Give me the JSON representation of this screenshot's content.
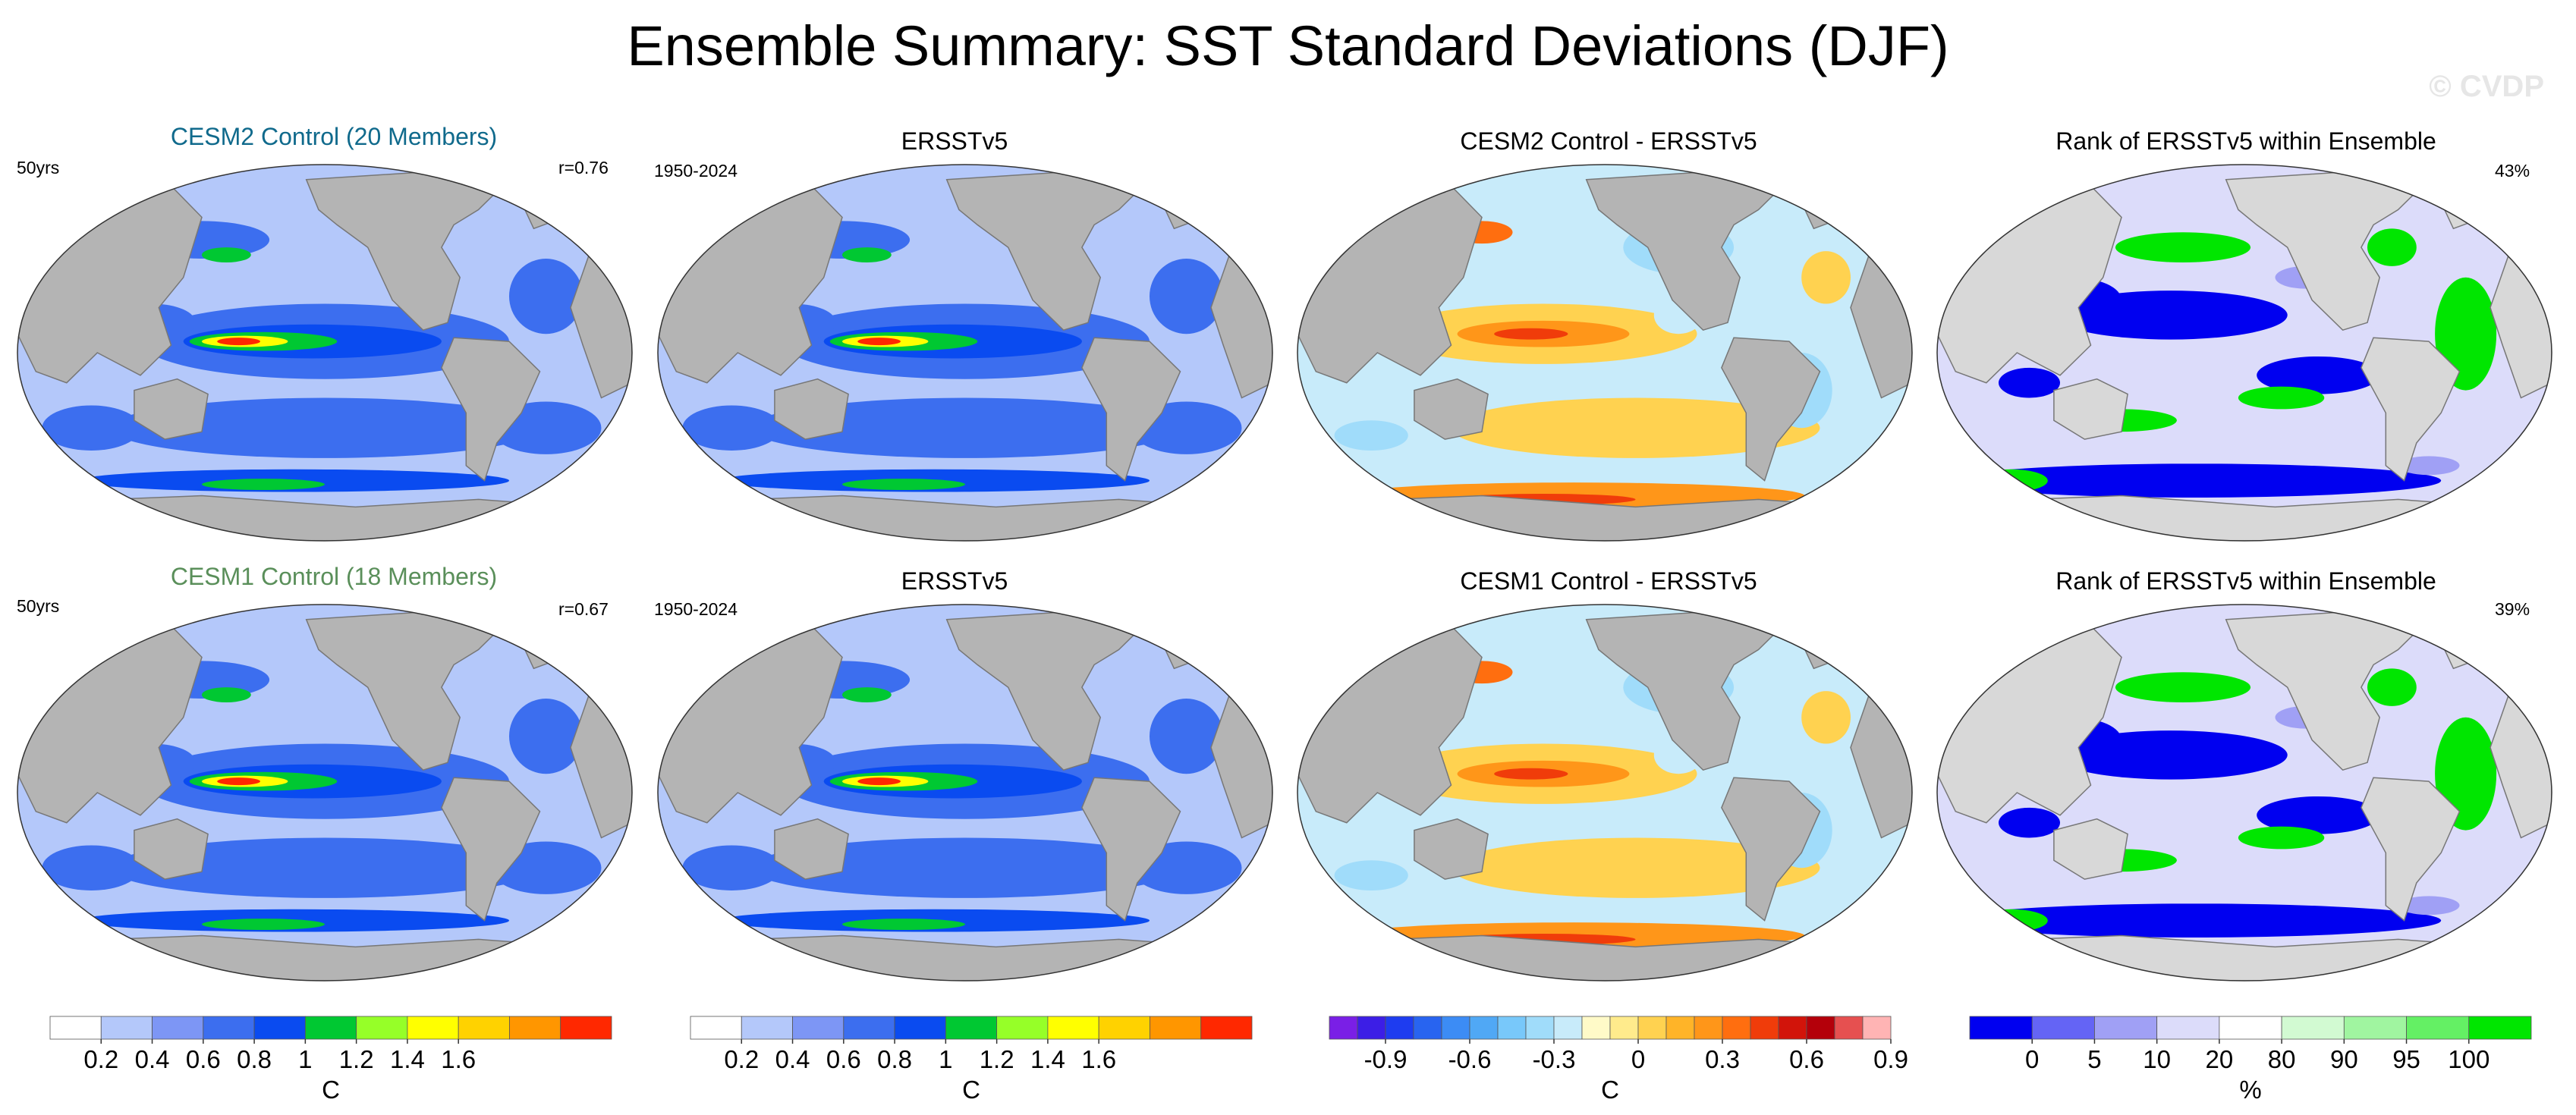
{
  "title": "Ensemble Summary: SST Standard Deviations (DJF)",
  "watermark": "© CVDP",
  "colors": {
    "land": "#b4b4b4",
    "cesm2_title": "#106a8c",
    "cesm1_title": "#5a8f5a",
    "sd_scale": [
      "#ffffff",
      "#b4c8fa",
      "#7d96f5",
      "#3c6eef",
      "#0a4bf0",
      "#00c832",
      "#96ff28",
      "#ffff00",
      "#ffd200",
      "#ff9600",
      "#ff2800"
    ],
    "diff_scale": [
      "#7a1fe6",
      "#3c1ee6",
      "#1e3cf0",
      "#2864f0",
      "#3c8cf5",
      "#50a8f5",
      "#78c8fa",
      "#a0dcfa",
      "#c8ebfa",
      "#fffac8",
      "#ffeb8c",
      "#ffd250",
      "#ffb428",
      "#ff9619",
      "#ff6e0f",
      "#f03c0a",
      "#d2140a",
      "#b4000a",
      "#e65050",
      "#ffb4b4"
    ],
    "rank_scale": [
      "#0000f0",
      "#6464f5",
      "#a0a0f5",
      "#dcdcfa",
      "#ffffff",
      "#d2fad2",
      "#a0f5a0",
      "#64f064",
      "#00e600"
    ]
  },
  "rows": [
    {
      "panels": [
        {
          "title": "CESM2 Control (20 Members)",
          "left": "50yrs",
          "right": "r=0.76",
          "kind": "sd"
        },
        {
          "title": "ERSSTv5",
          "left": "1950-2024",
          "right": "",
          "kind": "sd"
        },
        {
          "title": "CESM2 Control - ERSSTv5",
          "left": "",
          "right": "",
          "kind": "diff"
        },
        {
          "title": "Rank of ERSSTv5 within Ensemble",
          "left": "",
          "right": "43%",
          "kind": "rank"
        }
      ]
    },
    {
      "panels": [
        {
          "title": "CESM1 Control (18 Members)",
          "left": "50yrs",
          "right": "r=0.67",
          "kind": "sd"
        },
        {
          "title": "ERSSTv5",
          "left": "1950-2024",
          "right": "",
          "kind": "sd"
        },
        {
          "title": "CESM1 Control - ERSSTv5",
          "left": "",
          "right": "",
          "kind": "diff"
        },
        {
          "title": "Rank of ERSSTv5 within Ensemble",
          "left": "",
          "right": "39%",
          "kind": "rank"
        }
      ]
    }
  ],
  "colorbars": [
    {
      "label": "C",
      "ticks": [
        "0.2",
        "0.4",
        "0.6",
        "0.8",
        "1",
        "1.2",
        "1.4",
        "1.6"
      ]
    },
    {
      "label": "C",
      "ticks": [
        "0.2",
        "0.4",
        "0.6",
        "0.8",
        "1",
        "1.2",
        "1.4",
        "1.6"
      ]
    },
    {
      "label": "C",
      "ticks": [
        "-0.9",
        "-0.6",
        "-0.3",
        "0",
        "0.3",
        "0.6",
        "0.9"
      ]
    },
    {
      "label": "%",
      "ticks": [
        "0",
        "5",
        "10",
        "20",
        "80",
        "90",
        "95",
        "100"
      ]
    }
  ],
  "chart_data": [
    {
      "type": "heatmap",
      "title": "CESM2 Control (20 Members)",
      "annotation_left": "50yrs",
      "annotation_right": "r=0.76",
      "colorbar_label": "C",
      "levels": [
        0.2,
        0.4,
        0.6,
        0.8,
        1,
        1.2,
        1.4,
        1.6
      ]
    },
    {
      "type": "heatmap",
      "title": "ERSSTv5",
      "annotation_left": "1950-2024",
      "colorbar_label": "C",
      "levels": [
        0.2,
        0.4,
        0.6,
        0.8,
        1,
        1.2,
        1.4,
        1.6
      ]
    },
    {
      "type": "heatmap",
      "title": "CESM2 Control - ERSSTv5",
      "colorbar_label": "C",
      "levels": [
        -0.9,
        -0.6,
        -0.3,
        0,
        0.3,
        0.6,
        0.9
      ]
    },
    {
      "type": "heatmap",
      "title": "Rank of ERSSTv5 within Ensemble",
      "annotation_right": "43%",
      "colorbar_label": "%",
      "levels": [
        0,
        5,
        10,
        20,
        80,
        90,
        95,
        100
      ]
    },
    {
      "type": "heatmap",
      "title": "CESM1 Control (18 Members)",
      "annotation_left": "50yrs",
      "annotation_right": "r=0.67",
      "colorbar_label": "C",
      "levels": [
        0.2,
        0.4,
        0.6,
        0.8,
        1,
        1.2,
        1.4,
        1.6
      ]
    },
    {
      "type": "heatmap",
      "title": "ERSSTv5",
      "annotation_left": "1950-2024",
      "colorbar_label": "C",
      "levels": [
        0.2,
        0.4,
        0.6,
        0.8,
        1,
        1.2,
        1.4,
        1.6
      ]
    },
    {
      "type": "heatmap",
      "title": "CESM1 Control - ERSSTv5",
      "colorbar_label": "C",
      "levels": [
        -0.9,
        -0.6,
        -0.3,
        0,
        0.3,
        0.6,
        0.9
      ]
    },
    {
      "type": "heatmap",
      "title": "Rank of ERSSTv5 within Ensemble",
      "annotation_right": "39%",
      "colorbar_label": "%",
      "levels": [
        0,
        5,
        10,
        20,
        80,
        90,
        95,
        100
      ]
    }
  ]
}
